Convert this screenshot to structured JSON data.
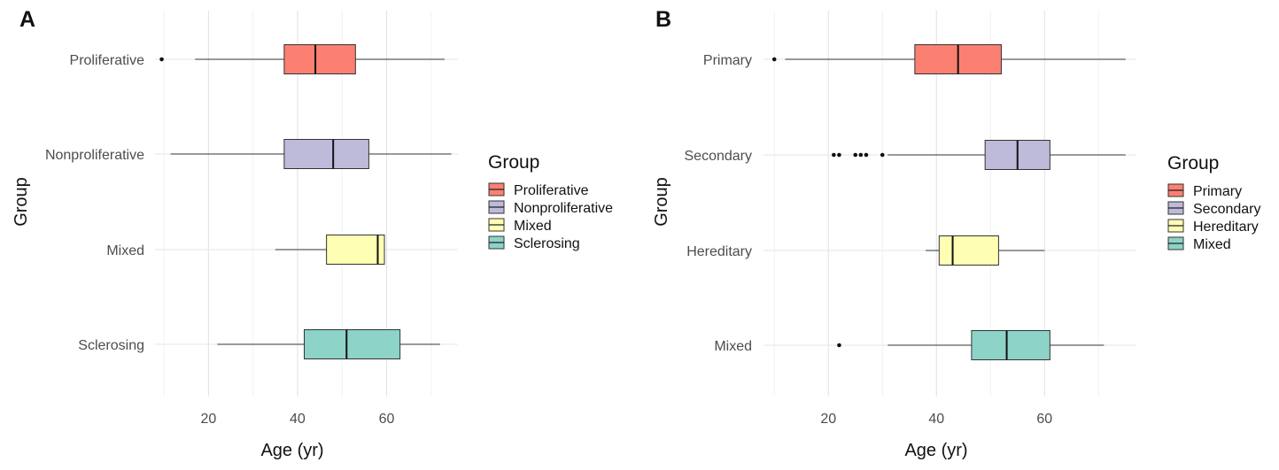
{
  "chart_data": [
    {
      "type": "boxplot",
      "panel": "A",
      "xlabel": "Age (yr)",
      "ylabel": "Group",
      "xlim": [
        8,
        76
      ],
      "xticks": [
        20,
        40,
        60
      ],
      "grid": true,
      "categories": [
        "Proliferative",
        "Nonproliferative",
        "Mixed",
        "Sclerosing"
      ],
      "legend": {
        "title": "Group",
        "position": "right",
        "entries": [
          "Proliferative",
          "Nonproliferative",
          "Mixed",
          "Sclerosing"
        ]
      },
      "boxes": [
        {
          "group": "Proliferative",
          "min": 17,
          "q1": 37,
          "median": 44,
          "q3": 53,
          "max": 73,
          "outliers": [
            9.5
          ],
          "color": "#fb8072"
        },
        {
          "group": "Nonproliferative",
          "min": 11.5,
          "q1": 37,
          "median": 48,
          "q3": 56,
          "max": 74.5,
          "outliers": [],
          "color": "#bebada"
        },
        {
          "group": "Mixed",
          "min": 35,
          "q1": 46.5,
          "median": 58,
          "q3": 59.5,
          "max": 59.5,
          "outliers": [],
          "color": "#ffffb3"
        },
        {
          "group": "Sclerosing",
          "min": 22,
          "q1": 41.5,
          "median": 51,
          "q3": 63,
          "max": 72,
          "outliers": [],
          "color": "#8dd3c7"
        }
      ]
    },
    {
      "type": "boxplot",
      "panel": "B",
      "xlabel": "Age (yr)",
      "ylabel": "Group",
      "xlim": [
        8,
        77
      ],
      "xticks": [
        20,
        40,
        60
      ],
      "grid": true,
      "categories": [
        "Primary",
        "Secondary",
        "Hereditary",
        "Mixed"
      ],
      "legend": {
        "title": "Group",
        "position": "right",
        "entries": [
          "Primary",
          "Secondary",
          "Hereditary",
          "Mixed"
        ]
      },
      "boxes": [
        {
          "group": "Primary",
          "min": 12,
          "q1": 36,
          "median": 44,
          "q3": 52,
          "max": 75,
          "outliers": [
            10
          ],
          "color": "#fb8072"
        },
        {
          "group": "Secondary",
          "min": 31,
          "q1": 49,
          "median": 55,
          "q3": 61,
          "max": 75,
          "outliers": [
            21,
            22,
            25,
            26,
            27,
            30
          ],
          "color": "#bebada"
        },
        {
          "group": "Hereditary",
          "min": 38,
          "q1": 40.5,
          "median": 43,
          "q3": 51.5,
          "max": 60,
          "outliers": [],
          "color": "#ffffb3"
        },
        {
          "group": "Mixed",
          "min": 31,
          "q1": 46.5,
          "median": 53,
          "q3": 61,
          "max": 71,
          "outliers": [
            22
          ],
          "color": "#8dd3c7"
        }
      ]
    }
  ]
}
